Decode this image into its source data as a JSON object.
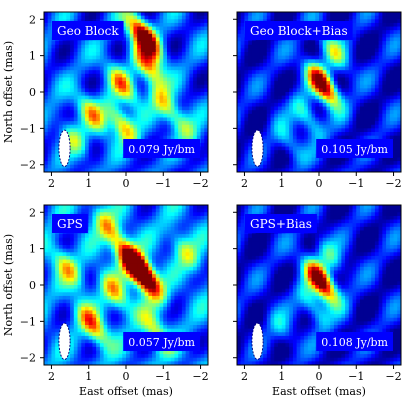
{
  "chart_data": [
    {
      "type": "heatmap",
      "panel_label": "Geo Block",
      "flux_label": "0.079 Jy/bm",
      "xlabel": "",
      "ylabel": "North offset (mas)",
      "x_ticks": [
        "2",
        "1",
        "0",
        "−1",
        "−2"
      ],
      "y_ticks": [
        "2",
        "1",
        "0",
        "−1",
        "−2"
      ],
      "xlim": [
        2.2,
        -2.2
      ],
      "ylim": [
        -2.2,
        2.2
      ],
      "peaks": [
        {
          "x": -0.5,
          "y": 1.5,
          "amp": 1.0
        },
        {
          "x": -0.6,
          "y": 0.7,
          "amp": 0.55
        },
        {
          "x": 0.1,
          "y": 0.2,
          "amp": 0.5
        },
        {
          "x": 0.1,
          "y": -0.9,
          "amp": 0.55
        },
        {
          "x": 0.9,
          "y": -0.6,
          "amp": 0.45
        },
        {
          "x": -1.0,
          "y": -0.3,
          "amp": 0.4
        },
        {
          "x": 1.4,
          "y": -1.3,
          "amp": 0.35
        },
        {
          "x": -1.6,
          "y": -1.0,
          "amp": 0.3
        }
      ],
      "background": 0.32,
      "beam": {
        "x": 1.65,
        "y": -1.55,
        "rx": 0.15,
        "ry": 0.5
      }
    },
    {
      "type": "heatmap",
      "panel_label": "Geo Block+Bias",
      "flux_label": "0.105 Jy/bm",
      "xlabel": "",
      "ylabel": "",
      "x_ticks": [
        "2",
        "1",
        "0",
        "−1",
        "−2"
      ],
      "y_ticks": [],
      "xlim": [
        2.2,
        -2.2
      ],
      "ylim": [
        -2.2,
        2.2
      ],
      "peaks": [
        {
          "x": -0.1,
          "y": 0.2,
          "amp": 1.0
        },
        {
          "x": -0.4,
          "y": 1.1,
          "amp": 0.4
        },
        {
          "x": 0.3,
          "y": -0.7,
          "amp": 0.38
        },
        {
          "x": 0.8,
          "y": -1.4,
          "amp": 0.25
        }
      ],
      "background": 0.18,
      "beam": {
        "x": 1.65,
        "y": -1.55,
        "rx": 0.15,
        "ry": 0.5
      }
    },
    {
      "type": "heatmap",
      "panel_label": "GPS",
      "flux_label": "0.057 Jy/bm",
      "xlabel": "East offset (mas)",
      "ylabel": "North offset (mas)",
      "x_ticks": [
        "2",
        "1",
        "0",
        "−1",
        "−2"
      ],
      "y_ticks": [
        "2",
        "1",
        "0",
        "−1",
        "−2"
      ],
      "xlim": [
        2.2,
        -2.2
      ],
      "ylim": [
        -2.2,
        2.2
      ],
      "peaks": [
        {
          "x": -0.2,
          "y": 0.6,
          "amp": 1.0
        },
        {
          "x": -0.55,
          "y": 0.2,
          "amp": 0.8
        },
        {
          "x": 0.9,
          "y": -1.1,
          "amp": 0.55
        },
        {
          "x": 0.5,
          "y": 1.6,
          "amp": 0.45
        },
        {
          "x": -0.8,
          "y": -1.3,
          "amp": 0.4
        },
        {
          "x": 1.6,
          "y": 0.5,
          "amp": 0.4
        },
        {
          "x": -1.6,
          "y": 0.9,
          "amp": 0.35
        },
        {
          "x": 0.3,
          "y": -0.2,
          "amp": 0.45
        }
      ],
      "background": 0.4,
      "beam": {
        "x": 1.65,
        "y": -1.55,
        "rx": 0.15,
        "ry": 0.5
      }
    },
    {
      "type": "heatmap",
      "panel_label": "GPS+Bias",
      "flux_label": "0.108 Jy/bm",
      "xlabel": "East offset (mas)",
      "ylabel": "",
      "x_ticks": [
        "2",
        "1",
        "0",
        "−1",
        "−2"
      ],
      "y_ticks": [],
      "xlim": [
        2.2,
        -2.2
      ],
      "ylim": [
        -2.2,
        2.2
      ],
      "peaks": [
        {
          "x": -0.05,
          "y": 0.1,
          "amp": 1.0
        },
        {
          "x": 0.15,
          "y": -0.6,
          "amp": 0.35
        },
        {
          "x": -0.3,
          "y": 0.8,
          "amp": 0.3
        },
        {
          "x": 1.0,
          "y": -1.2,
          "amp": 0.2
        }
      ],
      "background": 0.18,
      "beam": {
        "x": 1.65,
        "y": -1.55,
        "rx": 0.15,
        "ry": 0.5
      }
    }
  ],
  "colormap": [
    "#00007f",
    "#0000ff",
    "#007fff",
    "#00ffff",
    "#7fff7f",
    "#ffff00",
    "#ff7f00",
    "#ff0000",
    "#7f0000"
  ],
  "label_box_color": "#0000ff"
}
